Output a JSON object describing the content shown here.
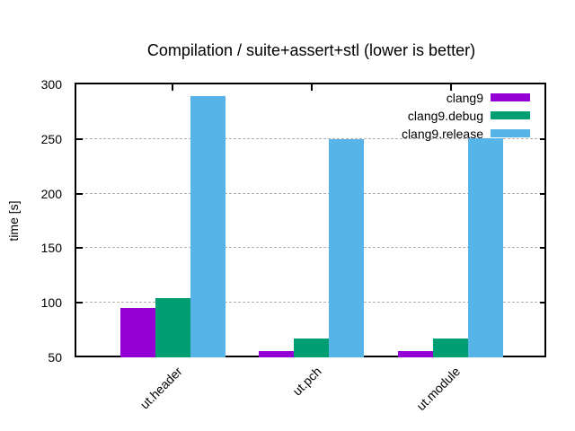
{
  "chart_data": {
    "type": "bar",
    "title": "Compilation / suite+assert+stl (lower is better)",
    "xlabel": "",
    "ylabel": "time [s]",
    "categories": [
      "ut.header",
      "ut.pch",
      "ut.module"
    ],
    "series": [
      {
        "name": "clang9",
        "color": "#9400d3",
        "values": [
          95,
          56,
          56
        ]
      },
      {
        "name": "clang9.debug",
        "color": "#009e73",
        "values": [
          104,
          67,
          67
        ]
      },
      {
        "name": "clang9.release",
        "color": "#56b4e9",
        "values": [
          289,
          250,
          251
        ]
      }
    ],
    "ylim": [
      50,
      300
    ],
    "yticks": [
      50,
      100,
      150,
      200,
      250,
      300
    ],
    "grid": "horizontal-dashed",
    "legend_position": "top-right-inside",
    "legend": [
      "clang9",
      "clang9.debug",
      "clang9.release"
    ]
  },
  "colors": {
    "background": "#ffffff",
    "axis": "#000000",
    "grid": "#b0b0b0",
    "text": "#000000"
  }
}
